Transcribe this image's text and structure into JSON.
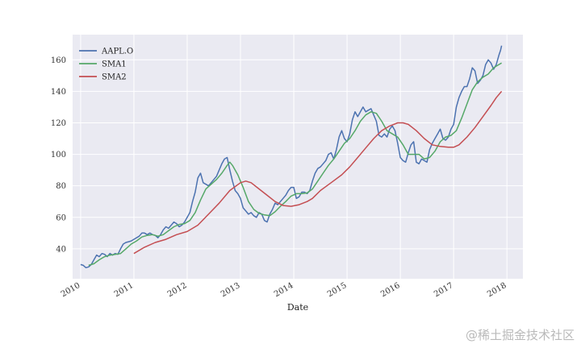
{
  "chart_data": {
    "type": "line",
    "xlabel": "Date",
    "ylabel": "",
    "xlim": [
      2009.85,
      2018.3
    ],
    "ylim": [
      21,
      176
    ],
    "yticks": [
      40,
      60,
      80,
      100,
      120,
      140,
      160
    ],
    "xticks": [
      2010,
      2011,
      2012,
      2013,
      2014,
      2015,
      2016,
      2017,
      2018
    ],
    "xtick_labels": [
      "2010",
      "2011",
      "2012",
      "2013",
      "2014",
      "2015",
      "2016",
      "2017",
      "2018"
    ],
    "grid": true,
    "legend_position": "top-left",
    "series": [
      {
        "name": "AAPL.O",
        "color": "#4c72b0",
        "points": [
          [
            2010.0,
            30
          ],
          [
            2010.05,
            29.5
          ],
          [
            2010.1,
            28
          ],
          [
            2010.15,
            28.5
          ],
          [
            2010.2,
            30
          ],
          [
            2010.25,
            33
          ],
          [
            2010.3,
            36
          ],
          [
            2010.35,
            35
          ],
          [
            2010.4,
            37
          ],
          [
            2010.45,
            36.5
          ],
          [
            2010.5,
            35
          ],
          [
            2010.55,
            37
          ],
          [
            2010.6,
            36
          ],
          [
            2010.65,
            37
          ],
          [
            2010.7,
            36.5
          ],
          [
            2010.75,
            40
          ],
          [
            2010.8,
            43
          ],
          [
            2010.85,
            44
          ],
          [
            2010.9,
            44.5
          ],
          [
            2010.95,
            45
          ],
          [
            2011.0,
            46
          ],
          [
            2011.1,
            48
          ],
          [
            2011.15,
            50
          ],
          [
            2011.2,
            50
          ],
          [
            2011.25,
            49
          ],
          [
            2011.3,
            50
          ],
          [
            2011.35,
            49
          ],
          [
            2011.4,
            48.5
          ],
          [
            2011.45,
            47
          ],
          [
            2011.5,
            49
          ],
          [
            2011.55,
            52
          ],
          [
            2011.6,
            54
          ],
          [
            2011.65,
            53
          ],
          [
            2011.7,
            55
          ],
          [
            2011.75,
            57
          ],
          [
            2011.8,
            56
          ],
          [
            2011.85,
            54
          ],
          [
            2011.9,
            55
          ],
          [
            2011.95,
            57
          ],
          [
            2012.0,
            60
          ],
          [
            2012.05,
            63
          ],
          [
            2012.1,
            70
          ],
          [
            2012.15,
            76
          ],
          [
            2012.2,
            85
          ],
          [
            2012.25,
            88
          ],
          [
            2012.3,
            82
          ],
          [
            2012.35,
            81
          ],
          [
            2012.4,
            80
          ],
          [
            2012.45,
            82
          ],
          [
            2012.5,
            84
          ],
          [
            2012.55,
            86
          ],
          [
            2012.6,
            90
          ],
          [
            2012.65,
            94
          ],
          [
            2012.7,
            97
          ],
          [
            2012.75,
            98
          ],
          [
            2012.8,
            90
          ],
          [
            2012.85,
            83
          ],
          [
            2012.9,
            77
          ],
          [
            2012.95,
            75
          ],
          [
            2013.0,
            72
          ],
          [
            2013.05,
            66
          ],
          [
            2013.1,
            64
          ],
          [
            2013.15,
            62
          ],
          [
            2013.2,
            63
          ],
          [
            2013.25,
            61
          ],
          [
            2013.3,
            60
          ],
          [
            2013.35,
            63
          ],
          [
            2013.4,
            62
          ],
          [
            2013.45,
            58
          ],
          [
            2013.5,
            57
          ],
          [
            2013.55,
            62
          ],
          [
            2013.6,
            65
          ],
          [
            2013.65,
            69
          ],
          [
            2013.7,
            68
          ],
          [
            2013.75,
            70
          ],
          [
            2013.8,
            72
          ],
          [
            2013.85,
            74
          ],
          [
            2013.9,
            77
          ],
          [
            2013.95,
            79
          ],
          [
            2014.0,
            79
          ],
          [
            2014.05,
            72
          ],
          [
            2014.1,
            73
          ],
          [
            2014.15,
            76
          ],
          [
            2014.2,
            76
          ],
          [
            2014.25,
            75
          ],
          [
            2014.3,
            77
          ],
          [
            2014.35,
            83
          ],
          [
            2014.4,
            88
          ],
          [
            2014.45,
            91
          ],
          [
            2014.5,
            92
          ],
          [
            2014.55,
            94
          ],
          [
            2014.6,
            96
          ],
          [
            2014.65,
            100
          ],
          [
            2014.7,
            101
          ],
          [
            2014.75,
            97
          ],
          [
            2014.8,
            103
          ],
          [
            2014.85,
            111
          ],
          [
            2014.9,
            115
          ],
          [
            2014.95,
            110
          ],
          [
            2015.0,
            108
          ],
          [
            2015.05,
            113
          ],
          [
            2015.1,
            122
          ],
          [
            2015.15,
            127
          ],
          [
            2015.2,
            124
          ],
          [
            2015.25,
            127
          ],
          [
            2015.3,
            130
          ],
          [
            2015.35,
            127
          ],
          [
            2015.4,
            128
          ],
          [
            2015.45,
            129
          ],
          [
            2015.5,
            125
          ],
          [
            2015.55,
            121
          ],
          [
            2015.6,
            112
          ],
          [
            2015.65,
            111
          ],
          [
            2015.7,
            113
          ],
          [
            2015.75,
            111
          ],
          [
            2015.8,
            116
          ],
          [
            2015.85,
            118
          ],
          [
            2015.9,
            115
          ],
          [
            2015.95,
            107
          ],
          [
            2016.0,
            98
          ],
          [
            2016.05,
            96
          ],
          [
            2016.1,
            95
          ],
          [
            2016.15,
            101
          ],
          [
            2016.2,
            106
          ],
          [
            2016.25,
            108
          ],
          [
            2016.3,
            95
          ],
          [
            2016.35,
            94
          ],
          [
            2016.4,
            97
          ],
          [
            2016.45,
            96
          ],
          [
            2016.5,
            95
          ],
          [
            2016.55,
            103
          ],
          [
            2016.6,
            107
          ],
          [
            2016.65,
            110
          ],
          [
            2016.7,
            113
          ],
          [
            2016.75,
            116
          ],
          [
            2016.8,
            110
          ],
          [
            2016.85,
            109
          ],
          [
            2016.9,
            111
          ],
          [
            2016.95,
            116
          ],
          [
            2017.0,
            119
          ],
          [
            2017.05,
            130
          ],
          [
            2017.1,
            136
          ],
          [
            2017.15,
            140
          ],
          [
            2017.2,
            143
          ],
          [
            2017.25,
            143
          ],
          [
            2017.3,
            148
          ],
          [
            2017.35,
            155
          ],
          [
            2017.4,
            153
          ],
          [
            2017.45,
            145
          ],
          [
            2017.5,
            147
          ],
          [
            2017.55,
            150
          ],
          [
            2017.6,
            157
          ],
          [
            2017.65,
            160
          ],
          [
            2017.7,
            158
          ],
          [
            2017.75,
            154
          ],
          [
            2017.8,
            157
          ],
          [
            2017.85,
            163
          ],
          [
            2017.88,
            166
          ],
          [
            2017.9,
            169
          ]
        ]
      },
      {
        "name": "SMA1",
        "color": "#55a868",
        "points": [
          [
            2010.15,
            29.5
          ],
          [
            2010.25,
            30.5
          ],
          [
            2010.35,
            33
          ],
          [
            2010.45,
            35
          ],
          [
            2010.55,
            36
          ],
          [
            2010.65,
            36.5
          ],
          [
            2010.75,
            37
          ],
          [
            2010.85,
            40
          ],
          [
            2010.95,
            43
          ],
          [
            2011.05,
            45
          ],
          [
            2011.15,
            47.5
          ],
          [
            2011.25,
            48.5
          ],
          [
            2011.35,
            49
          ],
          [
            2011.45,
            48
          ],
          [
            2011.55,
            49
          ],
          [
            2011.65,
            51.5
          ],
          [
            2011.75,
            54
          ],
          [
            2011.85,
            55.5
          ],
          [
            2011.95,
            56
          ],
          [
            2012.05,
            58
          ],
          [
            2012.15,
            63
          ],
          [
            2012.25,
            71
          ],
          [
            2012.35,
            78
          ],
          [
            2012.45,
            81
          ],
          [
            2012.55,
            84
          ],
          [
            2012.65,
            88
          ],
          [
            2012.75,
            93
          ],
          [
            2012.8,
            95
          ],
          [
            2012.85,
            93
          ],
          [
            2012.95,
            87
          ],
          [
            2013.05,
            79
          ],
          [
            2013.15,
            70
          ],
          [
            2013.25,
            65
          ],
          [
            2013.35,
            62.5
          ],
          [
            2013.45,
            61.5
          ],
          [
            2013.55,
            61
          ],
          [
            2013.65,
            63.5
          ],
          [
            2013.75,
            67
          ],
          [
            2013.85,
            70
          ],
          [
            2013.95,
            73.5
          ],
          [
            2014.05,
            75
          ],
          [
            2014.15,
            75
          ],
          [
            2014.25,
            75.5
          ],
          [
            2014.35,
            78
          ],
          [
            2014.45,
            83
          ],
          [
            2014.55,
            88
          ],
          [
            2014.65,
            93
          ],
          [
            2014.75,
            97
          ],
          [
            2014.85,
            102
          ],
          [
            2014.95,
            107
          ],
          [
            2015.05,
            110
          ],
          [
            2015.15,
            115
          ],
          [
            2015.25,
            121
          ],
          [
            2015.35,
            125
          ],
          [
            2015.45,
            127
          ],
          [
            2015.55,
            126
          ],
          [
            2015.65,
            121
          ],
          [
            2015.75,
            115
          ],
          [
            2015.85,
            113
          ],
          [
            2015.95,
            111
          ],
          [
            2016.05,
            106
          ],
          [
            2016.15,
            100
          ],
          [
            2016.25,
            100
          ],
          [
            2016.35,
            100
          ],
          [
            2016.45,
            97
          ],
          [
            2016.55,
            98
          ],
          [
            2016.65,
            102
          ],
          [
            2016.75,
            108
          ],
          [
            2016.85,
            111
          ],
          [
            2016.95,
            112
          ],
          [
            2017.05,
            115
          ],
          [
            2017.15,
            123
          ],
          [
            2017.25,
            132
          ],
          [
            2017.35,
            141
          ],
          [
            2017.45,
            146
          ],
          [
            2017.55,
            149
          ],
          [
            2017.65,
            151
          ],
          [
            2017.75,
            155
          ],
          [
            2017.85,
            157
          ],
          [
            2017.9,
            158
          ]
        ]
      },
      {
        "name": "SMA2",
        "color": "#c44e52",
        "points": [
          [
            2011.0,
            37
          ],
          [
            2011.2,
            41
          ],
          [
            2011.4,
            44
          ],
          [
            2011.6,
            46
          ],
          [
            2011.8,
            49
          ],
          [
            2012.0,
            51
          ],
          [
            2012.2,
            55
          ],
          [
            2012.4,
            62
          ],
          [
            2012.6,
            69
          ],
          [
            2012.8,
            77
          ],
          [
            2013.0,
            82
          ],
          [
            2013.1,
            83
          ],
          [
            2013.2,
            82
          ],
          [
            2013.35,
            78
          ],
          [
            2013.5,
            74
          ],
          [
            2013.65,
            70
          ],
          [
            2013.8,
            67.5
          ],
          [
            2013.95,
            67
          ],
          [
            2014.1,
            68
          ],
          [
            2014.25,
            70
          ],
          [
            2014.35,
            72
          ],
          [
            2014.5,
            77
          ],
          [
            2014.7,
            82
          ],
          [
            2014.9,
            87
          ],
          [
            2015.05,
            92
          ],
          [
            2015.2,
            98
          ],
          [
            2015.35,
            104
          ],
          [
            2015.5,
            110
          ],
          [
            2015.65,
            115
          ],
          [
            2015.8,
            118
          ],
          [
            2015.95,
            120
          ],
          [
            2016.05,
            120
          ],
          [
            2016.15,
            119
          ],
          [
            2016.3,
            115
          ],
          [
            2016.45,
            110
          ],
          [
            2016.6,
            106
          ],
          [
            2016.75,
            105
          ],
          [
            2016.9,
            104.5
          ],
          [
            2017.0,
            104.5
          ],
          [
            2017.1,
            106
          ],
          [
            2017.25,
            111
          ],
          [
            2017.4,
            117
          ],
          [
            2017.55,
            124
          ],
          [
            2017.7,
            131
          ],
          [
            2017.8,
            136
          ],
          [
            2017.9,
            140
          ]
        ]
      }
    ]
  },
  "watermark": "@稀土掘金技术社区"
}
